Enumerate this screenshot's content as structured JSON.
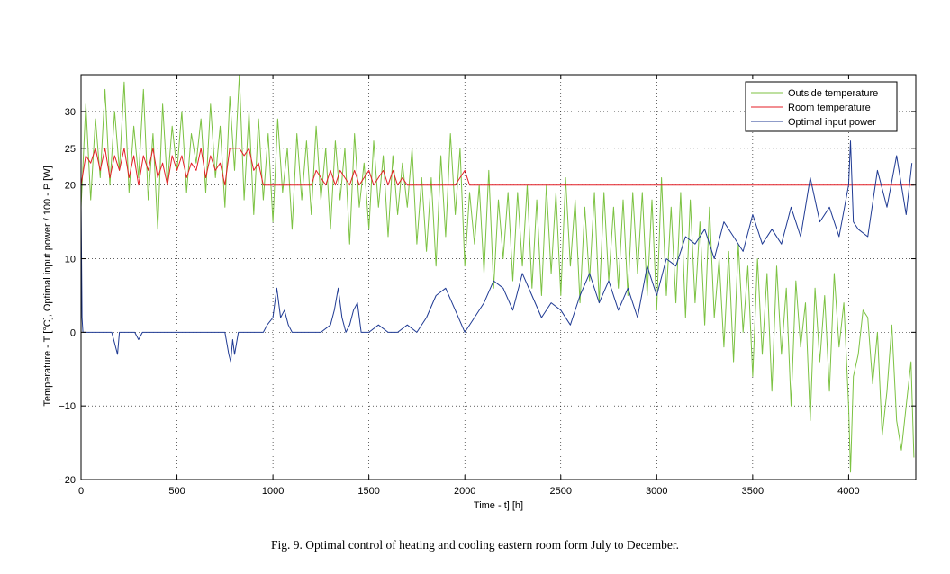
{
  "caption": "Fig. 9.   Optimal control of heating and cooling eastern room form July to December.",
  "chart_data": {
    "type": "line",
    "xlabel": "Time - t] [h]",
    "ylabel": "Temperature - T [°C], Optimal input power / 100 - P [W]",
    "xlim": [
      0,
      4350
    ],
    "ylim": [
      -20,
      35
    ],
    "xticks": [
      0,
      500,
      1000,
      1500,
      2000,
      2500,
      3000,
      3500,
      4000
    ],
    "yticks": [
      -20,
      -10,
      0,
      10,
      20,
      25,
      30
    ],
    "xtick_labels": [
      "0",
      "500",
      "1000",
      "1500",
      "2000",
      "2500",
      "3000",
      "3500",
      "4000"
    ],
    "ytick_labels": [
      "−20",
      "−10",
      "0",
      "10",
      "20",
      "25",
      "30"
    ],
    "grid": true,
    "legend_position": "top-right",
    "series": [
      {
        "name": "Outside temperature",
        "color": "#7cc242",
        "x": [
          0,
          25,
          50,
          75,
          100,
          125,
          150,
          175,
          200,
          225,
          250,
          275,
          300,
          325,
          350,
          375,
          400,
          425,
          450,
          475,
          500,
          525,
          550,
          575,
          600,
          625,
          650,
          675,
          700,
          725,
          750,
          775,
          800,
          825,
          850,
          875,
          900,
          925,
          950,
          975,
          1000,
          1025,
          1050,
          1075,
          1100,
          1125,
          1150,
          1175,
          1200,
          1225,
          1250,
          1275,
          1300,
          1325,
          1350,
          1375,
          1400,
          1425,
          1450,
          1475,
          1500,
          1525,
          1550,
          1575,
          1600,
          1625,
          1650,
          1675,
          1700,
          1725,
          1750,
          1775,
          1800,
          1825,
          1850,
          1875,
          1900,
          1925,
          1950,
          1975,
          2000,
          2025,
          2050,
          2075,
          2100,
          2125,
          2150,
          2175,
          2200,
          2225,
          2250,
          2275,
          2300,
          2325,
          2350,
          2375,
          2400,
          2425,
          2450,
          2475,
          2500,
          2525,
          2550,
          2575,
          2600,
          2625,
          2650,
          2675,
          2700,
          2725,
          2750,
          2775,
          2800,
          2825,
          2850,
          2875,
          2900,
          2925,
          2950,
          2975,
          3000,
          3025,
          3050,
          3075,
          3100,
          3125,
          3150,
          3175,
          3200,
          3225,
          3250,
          3275,
          3300,
          3325,
          3350,
          3375,
          3400,
          3425,
          3450,
          3475,
          3500,
          3525,
          3550,
          3575,
          3600,
          3625,
          3650,
          3675,
          3700,
          3725,
          3750,
          3775,
          3800,
          3825,
          3850,
          3875,
          3900,
          3925,
          3950,
          3975,
          4000,
          4010,
          4025,
          4050,
          4075,
          4100,
          4125,
          4150,
          4175,
          4200,
          4225,
          4250,
          4275,
          4300,
          4325,
          4340
        ],
        "y": [
          17,
          31,
          18,
          29,
          21,
          33,
          20,
          30,
          22,
          34,
          19,
          28,
          21,
          33,
          18,
          27,
          14,
          31,
          20,
          28,
          22,
          30,
          19,
          27,
          23,
          29,
          19,
          31,
          21,
          28,
          17,
          32,
          22,
          35,
          18,
          30,
          16,
          29,
          18,
          27,
          15,
          29,
          19,
          25,
          14,
          27,
          18,
          26,
          16,
          28,
          18,
          25,
          14,
          26,
          18,
          25,
          12,
          27,
          17,
          23,
          14,
          26,
          17,
          24,
          13,
          24,
          16,
          23,
          17,
          25,
          12,
          21,
          11,
          21,
          9,
          24,
          13,
          27,
          16,
          25,
          9,
          19,
          12,
          20,
          8,
          22,
          6,
          18,
          10,
          19,
          7,
          19,
          9,
          20,
          6,
          18,
          5,
          20,
          8,
          19,
          5,
          21,
          9,
          18,
          4,
          17,
          7,
          19,
          4,
          19,
          7,
          17,
          6,
          18,
          5,
          19,
          8,
          19,
          5,
          18,
          3,
          21,
          5,
          17,
          4,
          19,
          2,
          18,
          4,
          15,
          1,
          17,
          2,
          10,
          -2,
          11,
          -4,
          12,
          0,
          9,
          -6,
          10,
          -3,
          8,
          -8,
          9,
          -3,
          6,
          -10,
          7,
          -2,
          4,
          -12,
          6,
          -4,
          5,
          -8,
          8,
          -2,
          4,
          -10,
          -19,
          -6,
          -3,
          3,
          2,
          -7,
          0,
          -14,
          -8,
          1,
          -12,
          -16,
          -10,
          -4,
          -17
        ]
      },
      {
        "name": "Room temperature",
        "color": "#e41e26",
        "x": [
          0,
          25,
          50,
          75,
          100,
          125,
          150,
          175,
          200,
          225,
          250,
          275,
          300,
          325,
          350,
          375,
          400,
          425,
          450,
          475,
          500,
          525,
          550,
          575,
          600,
          625,
          650,
          675,
          700,
          725,
          750,
          775,
          800,
          825,
          850,
          875,
          900,
          925,
          950,
          975,
          1000,
          1100,
          1200,
          1225,
          1250,
          1275,
          1300,
          1325,
          1350,
          1375,
          1400,
          1425,
          1450,
          1475,
          1500,
          1525,
          1550,
          1575,
          1600,
          1625,
          1650,
          1675,
          1700,
          1725,
          1750,
          1800,
          1900,
          1950,
          1975,
          2000,
          2025,
          2050,
          2100,
          2200,
          2300,
          2400,
          2500,
          2600,
          2700,
          2800,
          2900,
          3000,
          3200,
          3400,
          3600,
          3800,
          4000,
          4200,
          4340
        ],
        "y": [
          20,
          24,
          23,
          25,
          22,
          25,
          21,
          24,
          22,
          25,
          21,
          24,
          20,
          24,
          22,
          25,
          21,
          23,
          20,
          24,
          22,
          24,
          21,
          23,
          22,
          25,
          21,
          24,
          22,
          23,
          20,
          25,
          25,
          25,
          24,
          25,
          22,
          23,
          20,
          20,
          20,
          20,
          20,
          22,
          21,
          20,
          22,
          20,
          22,
          21,
          20,
          22,
          20,
          21,
          22,
          20,
          21,
          22,
          20,
          22,
          20,
          21,
          20,
          20,
          20,
          20,
          20,
          20,
          21,
          22,
          20,
          20,
          20,
          20,
          20,
          20,
          20,
          20,
          20,
          20,
          20,
          20,
          20,
          20,
          20,
          20,
          20,
          20,
          20
        ]
      },
      {
        "name": "Optimal input power",
        "color": "#1f3a93",
        "x": [
          0,
          5,
          10,
          20,
          40,
          80,
          120,
          160,
          180,
          190,
          200,
          220,
          240,
          280,
          300,
          320,
          340,
          360,
          380,
          420,
          500,
          600,
          700,
          750,
          770,
          780,
          790,
          800,
          820,
          840,
          900,
          950,
          970,
          1000,
          1010,
          1020,
          1040,
          1060,
          1080,
          1100,
          1150,
          1200,
          1250,
          1300,
          1320,
          1340,
          1360,
          1380,
          1400,
          1420,
          1440,
          1460,
          1500,
          1550,
          1600,
          1650,
          1700,
          1750,
          1800,
          1850,
          1900,
          1950,
          2000,
          2050,
          2100,
          2150,
          2200,
          2250,
          2300,
          2350,
          2400,
          2450,
          2500,
          2550,
          2600,
          2650,
          2700,
          2750,
          2800,
          2850,
          2900,
          2950,
          3000,
          3050,
          3100,
          3150,
          3200,
          3250,
          3300,
          3350,
          3400,
          3450,
          3500,
          3550,
          3600,
          3650,
          3700,
          3750,
          3800,
          3850,
          3900,
          3950,
          4000,
          4010,
          4025,
          4050,
          4100,
          4150,
          4200,
          4250,
          4300,
          4330
        ],
        "y": [
          18,
          2,
          0,
          0,
          0,
          0,
          0,
          0,
          -2,
          -3,
          0,
          0,
          0,
          0,
          -1,
          0,
          0,
          0,
          0,
          0,
          0,
          0,
          0,
          0,
          -3,
          -4,
          -1,
          -3,
          0,
          0,
          0,
          0,
          1,
          2,
          4,
          6,
          2,
          3,
          1,
          0,
          0,
          0,
          0,
          1,
          3,
          6,
          2,
          0,
          1,
          3,
          4,
          0,
          0,
          1,
          0,
          0,
          1,
          0,
          2,
          5,
          6,
          3,
          0,
          2,
          4,
          7,
          6,
          3,
          8,
          5,
          2,
          4,
          3,
          1,
          5,
          8,
          4,
          7,
          3,
          6,
          2,
          9,
          5,
          10,
          9,
          13,
          12,
          14,
          10,
          15,
          13,
          11,
          16,
          12,
          14,
          12,
          17,
          13,
          21,
          15,
          17,
          13,
          20,
          26,
          15,
          14,
          13,
          22,
          17,
          24,
          16,
          23
        ]
      }
    ]
  }
}
